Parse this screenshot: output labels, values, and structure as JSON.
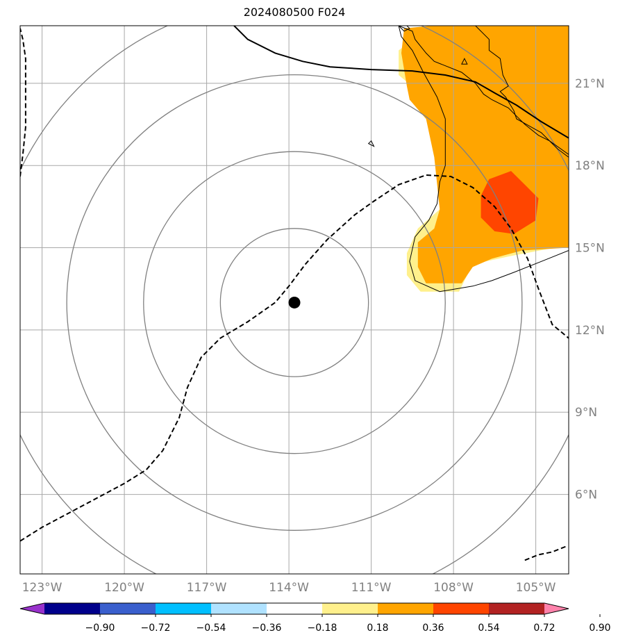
{
  "chart_data": {
    "type": "map",
    "title": "2024080500 F024",
    "lon_range": [
      -123.8,
      -103.8
    ],
    "lat_range": [
      3.1,
      23.1
    ],
    "lat_ticks": [
      {
        "value": 6,
        "label": "6°N"
      },
      {
        "value": 9,
        "label": "9°N"
      },
      {
        "value": 12,
        "label": "12°N"
      },
      {
        "value": 15,
        "label": "15°N"
      },
      {
        "value": 18,
        "label": "18°N"
      },
      {
        "value": 21,
        "label": "21°N"
      }
    ],
    "lon_ticks": [
      {
        "value": -123,
        "label": "123°W"
      },
      {
        "value": -120,
        "label": "120°W"
      },
      {
        "value": -117,
        "label": "117°W"
      },
      {
        "value": -114,
        "label": "114°W"
      },
      {
        "value": -111,
        "label": "111°W"
      },
      {
        "value": -108,
        "label": "108°W"
      },
      {
        "value": -105,
        "label": "105°W"
      }
    ],
    "gridlines": true,
    "storm_center": {
      "lon": -113.8,
      "lat": 13.0
    },
    "range_rings_deg": [
      2.7,
      5.5,
      8.3,
      11.1
    ],
    "colorbar": {
      "orientation": "horizontal",
      "extend": "both",
      "levels": [
        -0.9,
        -0.72,
        -0.54,
        -0.36,
        -0.18,
        0.18,
        0.36,
        0.54,
        0.72,
        0.9
      ],
      "tick_labels": [
        "−0.90",
        "−0.72",
        "−0.54",
        "−0.36",
        "−0.18",
        "0.18",
        "0.36",
        "0.54",
        "0.72",
        "0.90"
      ],
      "colors": [
        "#9932cc",
        "#00008b",
        "#3a5fcd",
        "#00bfff",
        "#b0e2ff",
        "#ffffff",
        "#fff08c",
        "#ffa500",
        "#ff4500",
        "#b22222",
        "#ff82ab"
      ]
    },
    "filled_regions": [
      {
        "level": "0.18–0.36",
        "color": "#fff08c",
        "polygon": [
          [
            -108.8,
            23.1
          ],
          [
            -103.8,
            23.1
          ],
          [
            -103.8,
            15.1
          ],
          [
            -105.9,
            14.7
          ],
          [
            -107.3,
            14.4
          ],
          [
            -107.8,
            13.4
          ],
          [
            -109.2,
            13.4
          ],
          [
            -109.7,
            14.0
          ],
          [
            -109.7,
            14.8
          ],
          [
            -109.3,
            15.7
          ],
          [
            -108.5,
            16.4
          ],
          [
            -108.4,
            18.7
          ],
          [
            -108.9,
            19.7
          ],
          [
            -109.3,
            20.3
          ],
          [
            -109.4,
            20.8
          ],
          [
            -110.0,
            21.3
          ],
          [
            -110.0,
            22.2
          ],
          [
            -108.8,
            23.1
          ]
        ]
      },
      {
        "level": "0.36–0.54",
        "color": "#ffa500",
        "polygon": [
          [
            -108.8,
            23.1
          ],
          [
            -103.8,
            23.1
          ],
          [
            -103.8,
            15.0
          ],
          [
            -105.5,
            14.9
          ],
          [
            -106.6,
            14.6
          ],
          [
            -107.3,
            14.3
          ],
          [
            -107.7,
            13.7
          ],
          [
            -109.0,
            13.7
          ],
          [
            -109.3,
            14.3
          ],
          [
            -109.3,
            15.2
          ],
          [
            -108.7,
            15.7
          ],
          [
            -108.5,
            16.4
          ],
          [
            -108.7,
            18.3
          ],
          [
            -109.0,
            19.7
          ],
          [
            -109.6,
            20.4
          ],
          [
            -109.7,
            20.9
          ],
          [
            -109.9,
            22.1
          ],
          [
            -109.8,
            23.0
          ],
          [
            -108.8,
            23.1
          ]
        ]
      },
      {
        "level": "0.54–0.72",
        "color": "#ff4500",
        "polygon": [
          [
            -105.9,
            17.8
          ],
          [
            -105.3,
            17.2
          ],
          [
            -104.9,
            16.8
          ],
          [
            -105.0,
            16.0
          ],
          [
            -105.8,
            15.5
          ],
          [
            -106.5,
            15.6
          ],
          [
            -107.0,
            16.1
          ],
          [
            -107.0,
            16.9
          ],
          [
            -106.7,
            17.5
          ],
          [
            -105.9,
            17.8
          ]
        ]
      }
    ],
    "coastlines": [
      [
        [
          -110.0,
          23.1
        ],
        [
          -109.5,
          22.9
        ],
        [
          -109.4,
          22.6
        ],
        [
          -109.0,
          22.1
        ],
        [
          -108.7,
          21.8
        ],
        [
          -108.2,
          21.6
        ],
        [
          -107.7,
          21.4
        ],
        [
          -107.2,
          21.0
        ],
        [
          -106.9,
          20.6
        ],
        [
          -106.6,
          20.4
        ],
        [
          -106.0,
          20.1
        ],
        [
          -105.7,
          19.8
        ],
        [
          -105.4,
          19.5
        ],
        [
          -104.9,
          19.1
        ],
        [
          -104.5,
          18.9
        ],
        [
          -103.8,
          18.4
        ]
      ],
      [
        [
          -110.0,
          23.1
        ],
        [
          -109.9,
          22.7
        ],
        [
          -109.5,
          22.2
        ],
        [
          -109.1,
          21.4
        ],
        [
          -108.6,
          20.5
        ],
        [
          -108.3,
          19.7
        ],
        [
          -108.3,
          18.9
        ],
        [
          -108.3,
          18.0
        ],
        [
          -108.5,
          17.4
        ],
        [
          -108.6,
          16.6
        ],
        [
          -108.9,
          16.0
        ],
        [
          -109.4,
          15.4
        ],
        [
          -109.6,
          14.5
        ],
        [
          -109.4,
          13.8
        ],
        [
          -108.5,
          13.4
        ],
        [
          -107.3,
          13.6
        ],
        [
          -106.6,
          13.8
        ],
        [
          -105.8,
          14.1
        ],
        [
          -104.8,
          14.5
        ],
        [
          -103.8,
          14.9
        ]
      ],
      [
        [
          -107.2,
          23.1
        ],
        [
          -106.7,
          22.6
        ],
        [
          -106.7,
          22.2
        ],
        [
          -106.3,
          21.9
        ],
        [
          -106.2,
          21.3
        ],
        [
          -106.0,
          20.9
        ],
        [
          -106.3,
          20.7
        ],
        [
          -106.1,
          20.5
        ],
        [
          -105.8,
          20.0
        ],
        [
          -105.7,
          19.7
        ],
        [
          -104.8,
          19.2
        ],
        [
          -104.2,
          18.6
        ],
        [
          -103.8,
          18.3
        ]
      ]
    ],
    "islands": [
      [
        [
          -107.6,
          21.9
        ],
        [
          -107.5,
          21.7
        ],
        [
          -107.7,
          21.7
        ],
        [
          -107.6,
          21.9
        ]
      ],
      [
        [
          -111.0,
          18.9
        ],
        [
          -110.9,
          18.7
        ],
        [
          -111.1,
          18.8
        ],
        [
          -111.0,
          18.9
        ]
      ],
      [
        [
          -110.0,
          23.1
        ],
        [
          -109.8,
          22.9
        ],
        [
          -109.6,
          23.0
        ],
        [
          -109.7,
          23.1
        ]
      ]
    ],
    "solid_contours": [
      [
        [
          -116.0,
          23.1
        ],
        [
          -115.5,
          22.6
        ],
        [
          -114.5,
          22.1
        ],
        [
          -113.5,
          21.8
        ],
        [
          -112.5,
          21.6
        ],
        [
          -111.0,
          21.5
        ],
        [
          -109.5,
          21.45
        ],
        [
          -108.3,
          21.3
        ],
        [
          -107.2,
          21.05
        ],
        [
          -106.5,
          20.65
        ],
        [
          -105.7,
          20.2
        ],
        [
          -104.8,
          19.6
        ],
        [
          -103.8,
          19.0
        ]
      ]
    ],
    "dashed_contours": [
      [
        [
          -123.8,
          4.3
        ],
        [
          -123.0,
          4.8
        ],
        [
          -121.5,
          5.6
        ],
        [
          -120.0,
          6.4
        ],
        [
          -119.2,
          6.9
        ],
        [
          -118.6,
          7.6
        ],
        [
          -118.0,
          8.8
        ],
        [
          -117.7,
          9.9
        ],
        [
          -117.2,
          11.0
        ],
        [
          -116.5,
          11.7
        ],
        [
          -115.5,
          12.3
        ],
        [
          -114.5,
          13.0
        ],
        [
          -114.0,
          13.6
        ],
        [
          -113.4,
          14.4
        ],
        [
          -112.6,
          15.3
        ],
        [
          -111.6,
          16.2
        ],
        [
          -110.9,
          16.7
        ],
        [
          -110.0,
          17.3
        ],
        [
          -109.0,
          17.65
        ],
        [
          -108.1,
          17.6
        ],
        [
          -107.3,
          17.2
        ],
        [
          -106.5,
          16.5
        ],
        [
          -105.9,
          15.7
        ],
        [
          -105.3,
          14.6
        ],
        [
          -104.9,
          13.5
        ],
        [
          -104.4,
          12.2
        ],
        [
          -103.8,
          11.7
        ]
      ],
      [
        [
          -123.8,
          17.6
        ],
        [
          -123.7,
          18.4
        ],
        [
          -123.6,
          19.4
        ],
        [
          -123.6,
          20.6
        ],
        [
          -123.6,
          21.9
        ],
        [
          -123.7,
          22.6
        ],
        [
          -123.8,
          23.0
        ]
      ],
      [
        [
          -105.4,
          3.6
        ],
        [
          -104.9,
          3.8
        ],
        [
          -104.4,
          3.9
        ],
        [
          -103.9,
          4.1
        ]
      ]
    ]
  }
}
